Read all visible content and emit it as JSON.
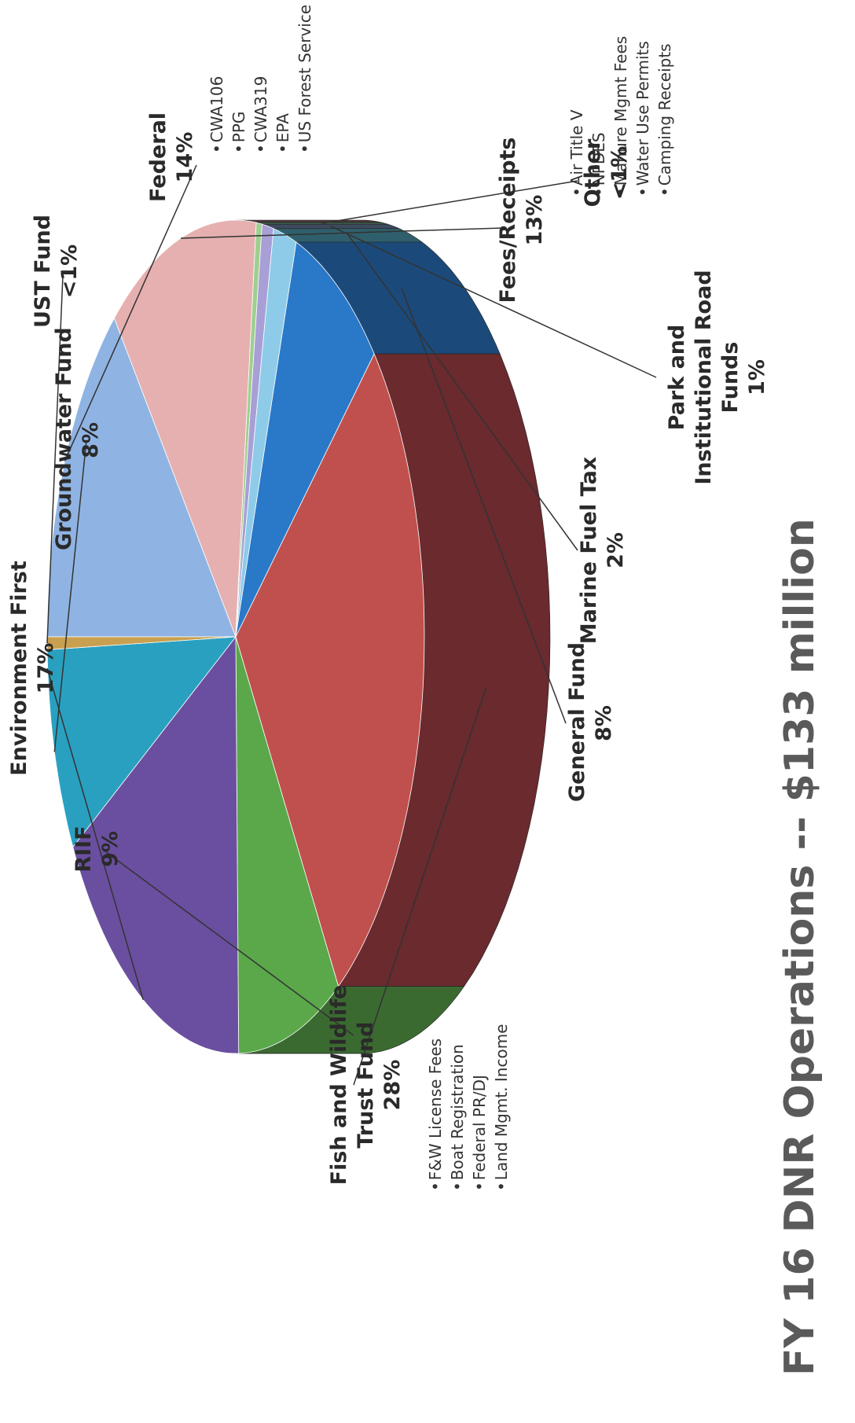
{
  "chart_data": {
    "type": "pie",
    "title": "FY 16 DNR Operations -- $133 million",
    "slices": [
      {
        "label": "Federal",
        "pct_label": "14%",
        "value": 14,
        "color": "#8fb4e3",
        "side": "#6f8fb8",
        "notes": [
          "CWA106",
          "PPG",
          "CWA319",
          "EPA",
          "US Forest Service"
        ]
      },
      {
        "label": "Fees/Receipts",
        "pct_label": "13%",
        "value": 13,
        "color": "#e6b0b0",
        "side": "#4a3539",
        "notes": [
          "Air Title V",
          "NPDES",
          "Manure Mgmt Fees",
          "Water Use Permits",
          "Camping Receipts"
        ]
      },
      {
        "label": "Other",
        "pct_label": "<1%",
        "value": 0.5,
        "color": "#9fcf8f",
        "side": "#3f6a52",
        "notes": []
      },
      {
        "label": "Park and Institutional Road Funds",
        "pct_label": "1%",
        "value": 1,
        "color": "#a89fd6",
        "side": "#3d4a5e",
        "notes": []
      },
      {
        "label": "Marine Fuel Tax",
        "pct_label": "2%",
        "value": 2,
        "color": "#8ecbe8",
        "side": "#2f5f6c",
        "notes": []
      },
      {
        "label": "General Fund",
        "pct_label": "8%",
        "value": 8,
        "color": "#2a78c8",
        "side": "#1b4a7a",
        "notes": []
      },
      {
        "label": "Fish and Wildlife Trust Fund",
        "pct_label": "28%",
        "value": 28,
        "color": "#c0504d",
        "side": "#6a2a2e",
        "notes": [
          "F&W License Fees",
          "Boat Registration",
          "Federal PR/DJ",
          "Land Mgmt. Income"
        ]
      },
      {
        "label": "RIIF",
        "pct_label": "9%",
        "value": 9,
        "color": "#5aa84a",
        "side": "#3a6a30",
        "notes": []
      },
      {
        "label": "Environment First",
        "pct_label": "17%",
        "value": 17,
        "color": "#6a4fa0",
        "side": "#3a2a60",
        "notes": []
      },
      {
        "label": "Groundwater Fund",
        "pct_label": "8%",
        "value": 8,
        "color": "#2aa0c0",
        "side": "#1a6070",
        "notes": []
      },
      {
        "label": "UST Fund",
        "pct_label": "<1%",
        "value": 0.5,
        "color": "#c8a050",
        "side": "#806030",
        "notes": []
      }
    ]
  }
}
